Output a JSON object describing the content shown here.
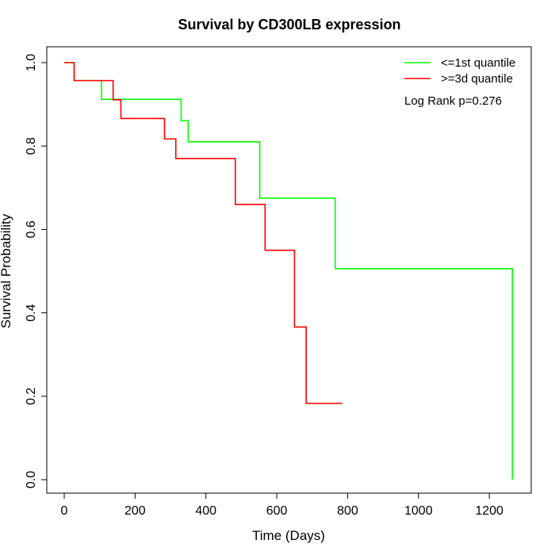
{
  "chart_data": {
    "type": "line",
    "title": "Survival by CD300LB expression",
    "xlabel": "Time (Days)",
    "ylabel": "Survival Probability",
    "xlim": [
      0,
      1270
    ],
    "ylim": [
      0,
      1
    ],
    "x_ticks": [
      0,
      200,
      400,
      600,
      800,
      1000,
      1200
    ],
    "x_tick_labels": [
      "0",
      "200",
      "400",
      "600",
      "800",
      "1000",
      "1200"
    ],
    "y_ticks": [
      0,
      0.2,
      0.4,
      0.6,
      0.8,
      1.0
    ],
    "y_tick_labels": [
      "0.0",
      "0.2",
      "0.4",
      "0.6",
      "0.8",
      "1.0"
    ],
    "grid": false,
    "legend_position": "top-right",
    "annotation": "Log Rank p=0.276",
    "series": [
      {
        "name": "<=1st quantile",
        "color": "#00ff00",
        "steps": [
          [
            0,
            1.0
          ],
          [
            28,
            0.957
          ],
          [
            105,
            0.912
          ],
          [
            330,
            0.861
          ],
          [
            350,
            0.81
          ],
          [
            552,
            0.675
          ],
          [
            765,
            0.506
          ],
          [
            1265,
            0.0
          ]
        ],
        "end": 1265
      },
      {
        "name": ">=3d quantile",
        "color": "#ff0000",
        "steps": [
          [
            0,
            1.0
          ],
          [
            28,
            0.957
          ],
          [
            138,
            0.911
          ],
          [
            160,
            0.866
          ],
          [
            283,
            0.817
          ],
          [
            315,
            0.77
          ],
          [
            483,
            0.66
          ],
          [
            567,
            0.55
          ],
          [
            650,
            0.366
          ],
          [
            683,
            0.183
          ]
        ],
        "end": 785
      }
    ]
  }
}
